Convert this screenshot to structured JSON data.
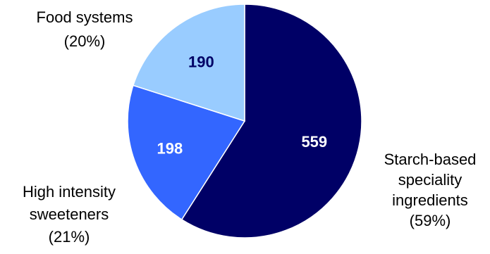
{
  "chart_data": {
    "type": "pie",
    "title": "",
    "slices": [
      {
        "label_lines": [
          "Starch-based",
          "speciality",
          "ingredients",
          "(59%)"
        ],
        "value": 559,
        "value_text": "559",
        "percent": 59,
        "color": "#000066",
        "value_label_color": "#ffffff"
      },
      {
        "label_lines": [
          "High intensity",
          "sweeteners",
          "(21%)"
        ],
        "value": 198,
        "value_text": "198",
        "percent": 21,
        "color": "#3366ff",
        "value_label_color": "#ffffff"
      },
      {
        "label_lines": [
          "Food systems",
          "(20%)"
        ],
        "value": 190,
        "value_text": "190",
        "percent": 20,
        "color": "#99ccff",
        "value_label_color": "#000066"
      }
    ],
    "start": "12 o'clock",
    "direction": "clockwise",
    "legend": "none",
    "slice_border_color": "#ffffff"
  }
}
